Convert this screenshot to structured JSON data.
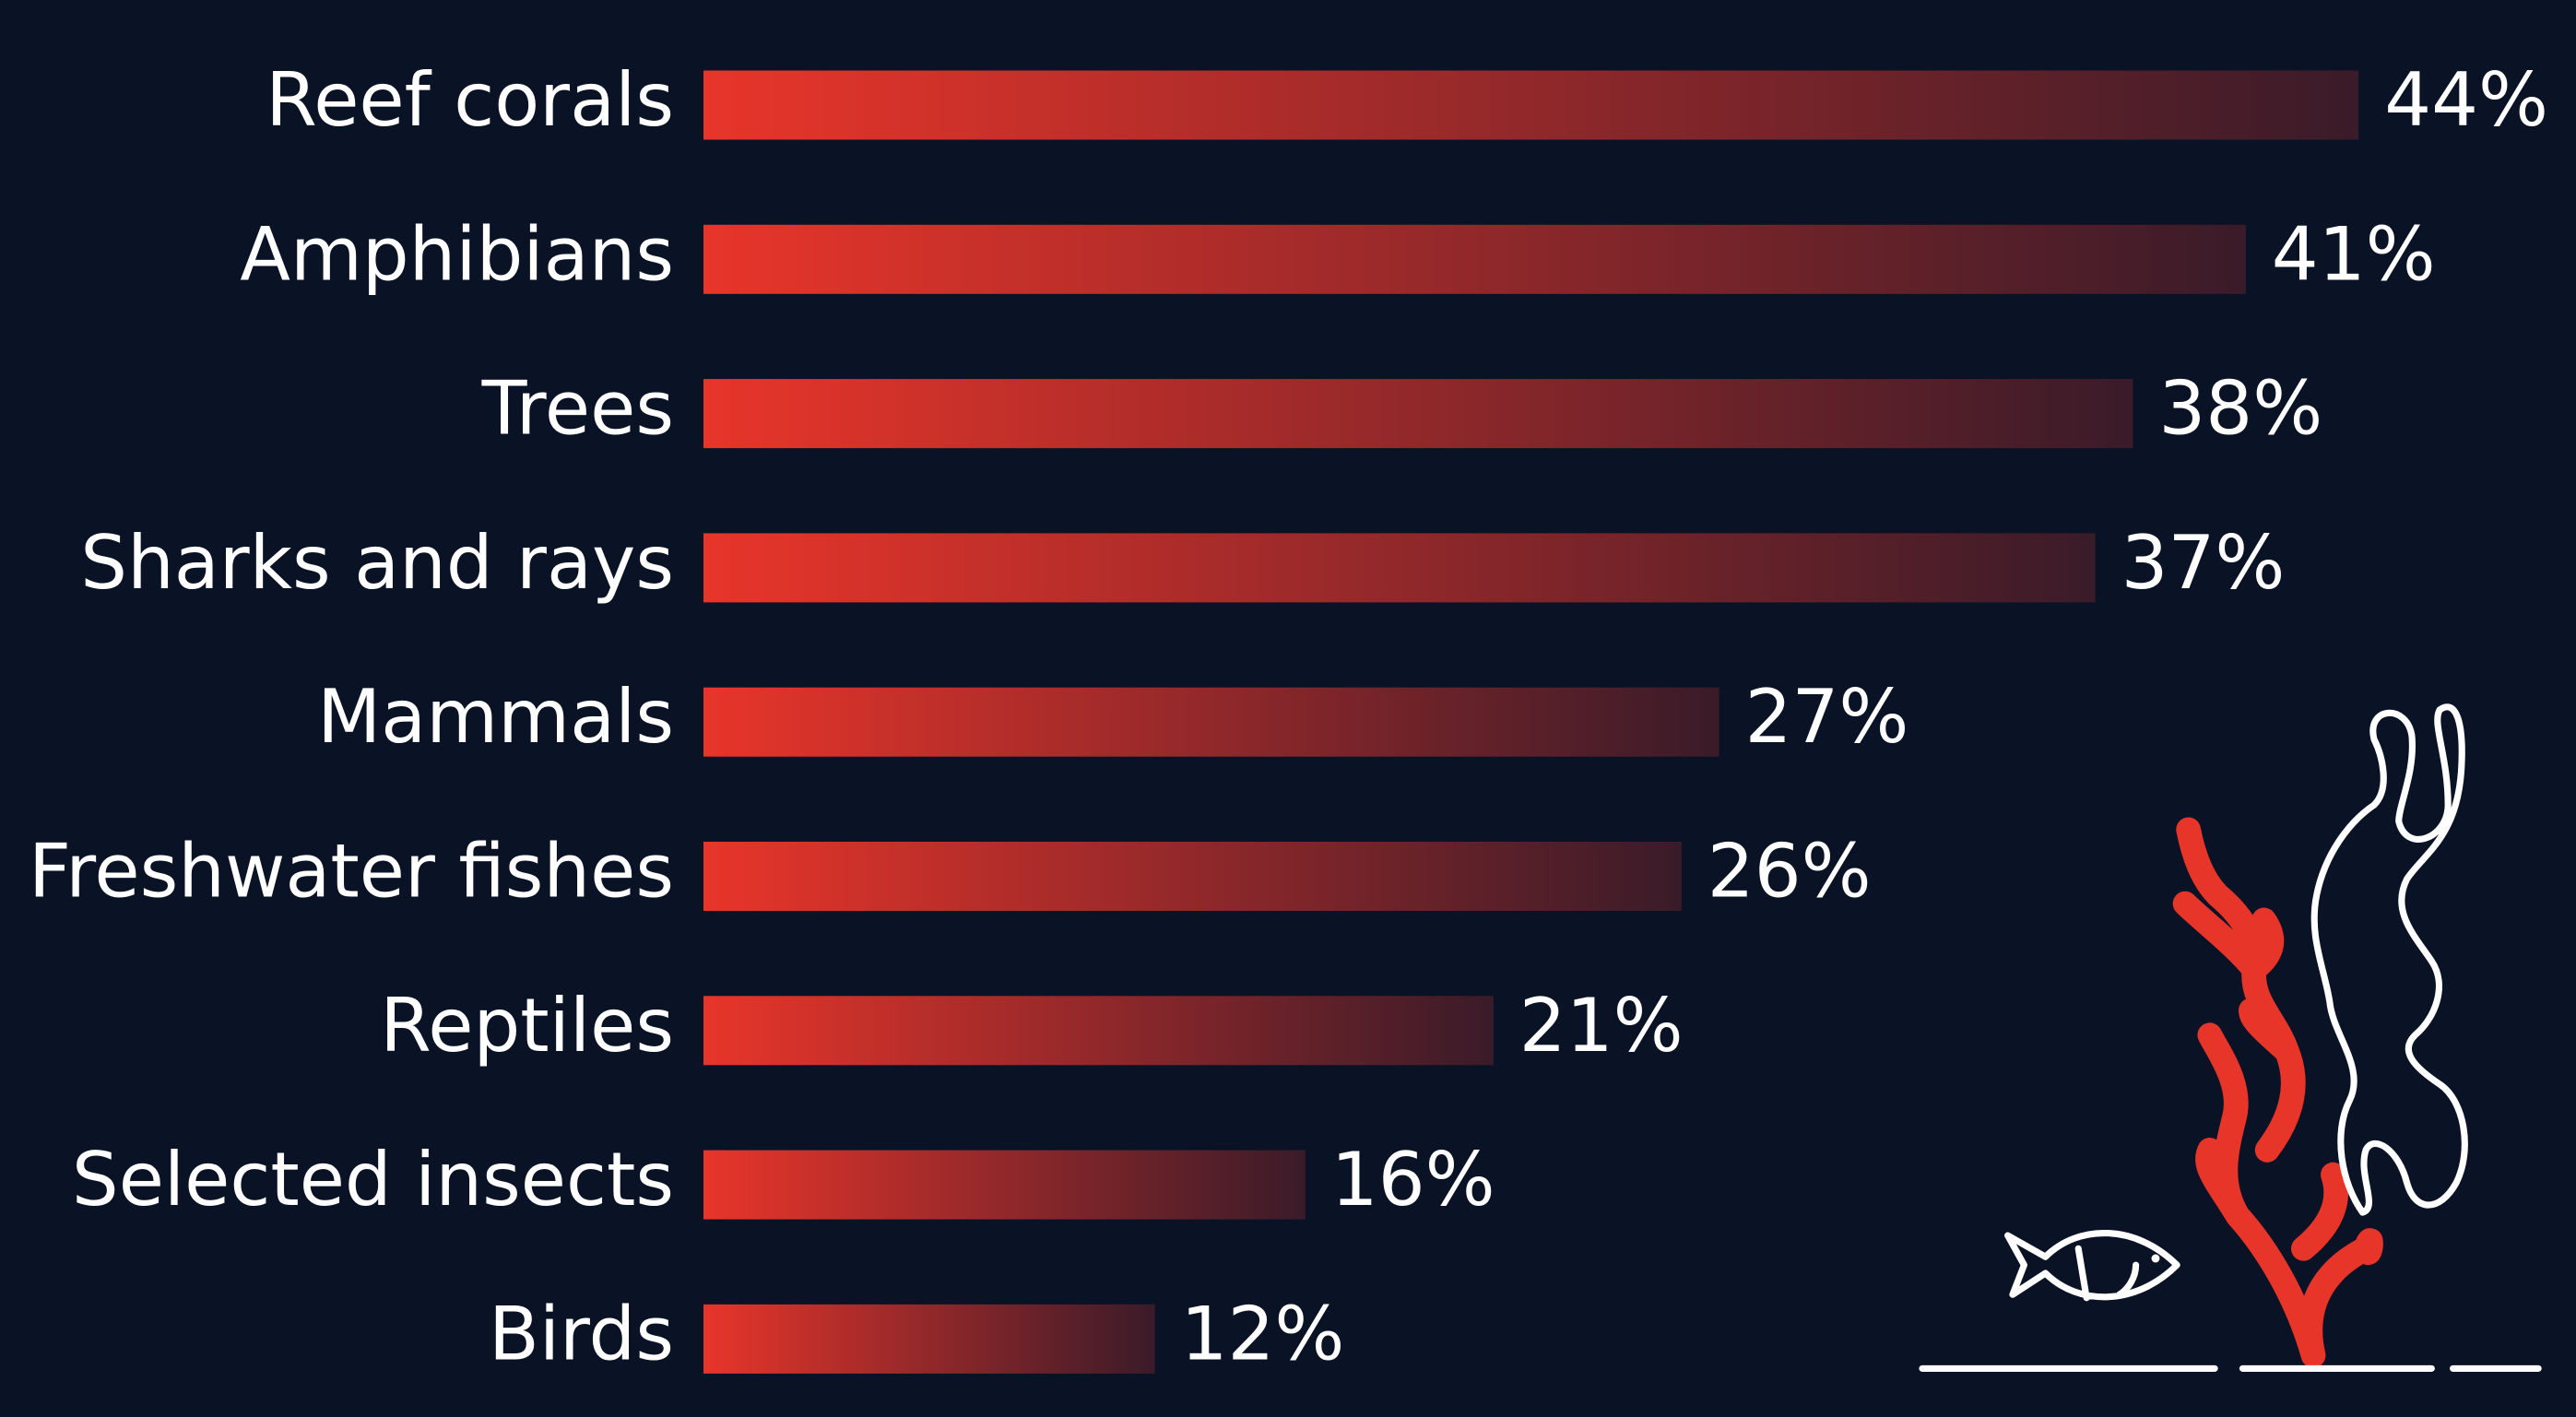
{
  "chart_data": {
    "type": "bar",
    "categories": [
      "Reef corals",
      "Amphibians",
      "Trees",
      "Sharks and rays",
      "Mammals",
      "Freshwater fishes",
      "Reptiles",
      "Selected insects",
      "Birds"
    ],
    "values": [
      44,
      41,
      38,
      37,
      27,
      26,
      21,
      16,
      12
    ],
    "value_labels": [
      "44%",
      "41%",
      "38%",
      "37%",
      "27%",
      "26%",
      "21%",
      "16%",
      "12%"
    ],
    "colors": [
      "#e8352a",
      "#3a1b29"
    ]
  }
}
